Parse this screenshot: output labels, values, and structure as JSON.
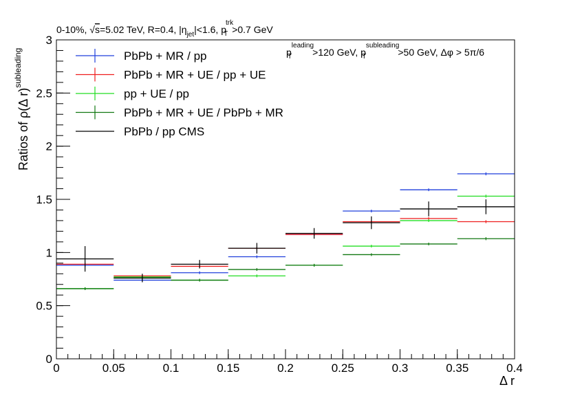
{
  "chart_data": {
    "type": "step-histogram",
    "header": "0-10%, √s=5.02 TeV, R=0.4, |ηjet|<1.6, pTtrk>0.7 GeV",
    "cuts": "pTleading>120 GeV, pTsubleading>50 GeV, Δφ > 5π/6",
    "xlabel": "Δ r",
    "ylabel": "Ratios of ρ(Δ r)subleading",
    "xlim": [
      0,
      0.4
    ],
    "ylim": [
      0,
      3
    ],
    "x_ticks": [
      "0",
      "0.05",
      "0.1",
      "0.15",
      "0.2",
      "0.25",
      "0.3",
      "0.35",
      "0.4"
    ],
    "y_ticks": [
      "0",
      "0.5",
      "1",
      "1.5",
      "2",
      "2.5",
      "3"
    ],
    "bin_edges": [
      0,
      0.05,
      0.1,
      0.15,
      0.2,
      0.25,
      0.3,
      0.35,
      0.4
    ],
    "legend_position": "top-left",
    "series": [
      {
        "name": "PbPb + MR / pp",
        "color": "#1f3fdc",
        "values": [
          0.88,
          0.74,
          0.81,
          0.96,
          1.17,
          1.39,
          1.59,
          1.74
        ],
        "errors": [
          0.005,
          0.005,
          0.005,
          0.006,
          0.008,
          0.01,
          0.012,
          0.014
        ]
      },
      {
        "name": "PbPb + MR + UE / pp + UE",
        "color": "#ee1c1c",
        "values": [
          0.89,
          0.78,
          0.87,
          1.04,
          1.17,
          1.29,
          1.32,
          1.29
        ],
        "errors": [
          0.005,
          0.005,
          0.005,
          0.006,
          0.008,
          0.01,
          0.012,
          0.014
        ]
      },
      {
        "name": "pp + UE / pp",
        "color": "#22dd22",
        "values": [
          0.66,
          0.77,
          0.74,
          0.78,
          0.88,
          1.06,
          1.3,
          1.53
        ],
        "errors": [
          0.005,
          0.005,
          0.005,
          0.006,
          0.008,
          0.01,
          0.012,
          0.014
        ]
      },
      {
        "name": "PbPb + MR + UE / PbPb + MR",
        "color": "#117711",
        "values": [
          0.66,
          0.76,
          0.74,
          0.84,
          0.88,
          0.98,
          1.08,
          1.13
        ],
        "errors": [
          0.005,
          0.005,
          0.005,
          0.006,
          0.008,
          0.01,
          0.012,
          0.014
        ]
      },
      {
        "name": "PbPb / pp CMS",
        "color": "#000000",
        "values": [
          0.94,
          0.76,
          0.89,
          1.04,
          1.18,
          1.28,
          1.41,
          1.43
        ],
        "errors": [
          0.12,
          0.04,
          0.04,
          0.05,
          0.05,
          0.06,
          0.07,
          0.07
        ]
      }
    ]
  }
}
